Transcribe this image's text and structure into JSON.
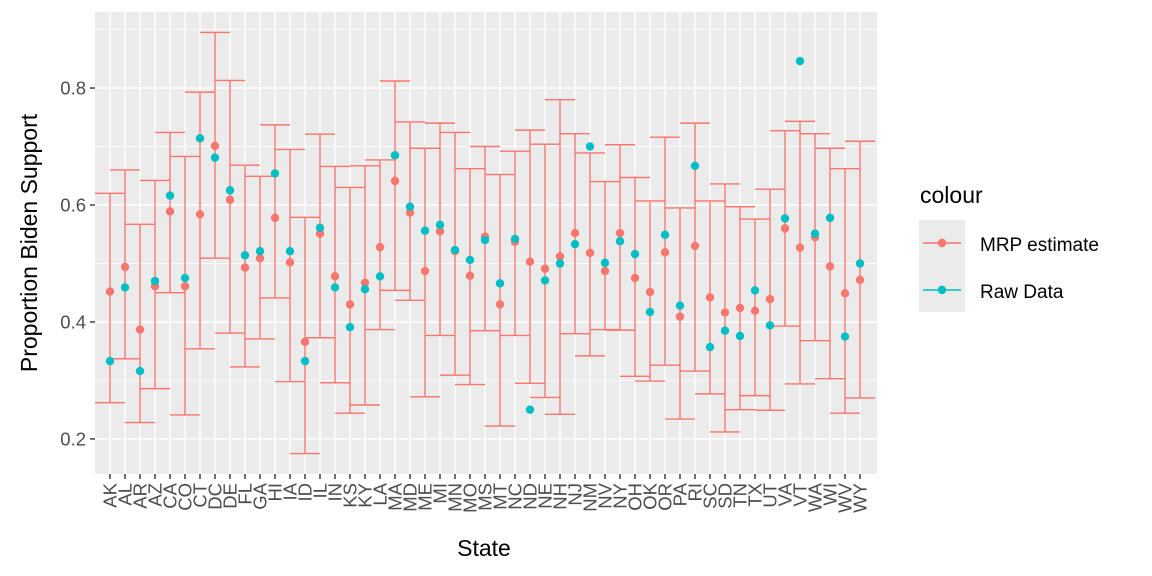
{
  "chart_data": {
    "type": "scatter",
    "xlabel": "State",
    "ylabel": "Proportion Biden Support",
    "ylim": [
      0.14,
      0.93
    ],
    "y_ticks": [
      0.2,
      0.4,
      0.6,
      0.8
    ],
    "y_tick_labels": [
      "0.2",
      "0.4",
      "0.6",
      "0.8"
    ],
    "grid": true,
    "legend_position": "right",
    "legend_title": "colour",
    "categories": [
      "AK",
      "AL",
      "AR",
      "AZ",
      "CA",
      "CO",
      "CT",
      "DC",
      "DE",
      "FL",
      "GA",
      "HI",
      "IA",
      "ID",
      "IL",
      "IN",
      "KS",
      "KY",
      "LA",
      "MA",
      "MD",
      "ME",
      "MI",
      "MN",
      "MO",
      "MS",
      "MT",
      "NC",
      "ND",
      "NE",
      "NH",
      "NJ",
      "NM",
      "NV",
      "NY",
      "OH",
      "OK",
      "OR",
      "PA",
      "RI",
      "SC",
      "SD",
      "TN",
      "TX",
      "UT",
      "VA",
      "VT",
      "WA",
      "WI",
      "WV",
      "WY"
    ],
    "series": [
      {
        "name": "MRP estimate",
        "color": "#F8766D",
        "values": [
          0.452,
          0.494,
          0.387,
          0.461,
          0.589,
          0.461,
          0.584,
          0.701,
          0.609,
          0.493,
          0.509,
          0.578,
          0.502,
          0.366,
          0.551,
          0.478,
          0.43,
          0.467,
          0.528,
          0.641,
          0.587,
          0.487,
          0.555,
          0.521,
          0.479,
          0.546,
          0.43,
          0.537,
          0.503,
          0.491,
          0.512,
          0.552,
          0.518,
          0.487,
          0.552,
          0.475,
          0.451,
          0.519,
          0.409,
          0.53,
          0.442,
          0.416,
          0.424,
          0.419,
          0.439,
          0.56,
          0.527,
          0.545,
          0.495,
          0.449,
          0.472
        ],
        "lower": [
          0.262,
          0.337,
          0.228,
          0.286,
          0.45,
          0.241,
          0.354,
          0.509,
          0.381,
          0.323,
          0.371,
          0.441,
          0.298,
          0.175,
          0.373,
          0.296,
          0.244,
          0.258,
          0.387,
          0.454,
          0.437,
          0.272,
          0.377,
          0.309,
          0.293,
          0.385,
          0.222,
          0.377,
          0.295,
          0.271,
          0.242,
          0.38,
          0.342,
          0.387,
          0.386,
          0.307,
          0.299,
          0.326,
          0.234,
          0.316,
          0.277,
          0.212,
          0.25,
          0.274,
          0.249,
          0.393,
          0.294,
          0.368,
          0.303,
          0.244,
          0.27
        ],
        "upper": [
          0.62,
          0.66,
          0.567,
          0.642,
          0.724,
          0.683,
          0.793,
          0.895,
          0.813,
          0.668,
          0.649,
          0.737,
          0.695,
          0.579,
          0.721,
          0.666,
          0.63,
          0.667,
          0.677,
          0.812,
          0.742,
          0.697,
          0.74,
          0.724,
          0.662,
          0.7,
          0.652,
          0.692,
          0.728,
          0.704,
          0.78,
          0.722,
          0.689,
          0.64,
          0.703,
          0.647,
          0.607,
          0.716,
          0.595,
          0.74,
          0.607,
          0.636,
          0.597,
          0.576,
          0.627,
          0.727,
          0.743,
          0.722,
          0.697,
          0.662,
          0.709
        ]
      },
      {
        "name": "Raw Data",
        "color": "#00BFC4",
        "values": [
          0.333,
          0.459,
          0.316,
          0.47,
          0.616,
          0.475,
          0.714,
          0.681,
          0.625,
          0.514,
          0.521,
          0.654,
          0.521,
          0.333,
          0.561,
          0.459,
          0.391,
          0.456,
          0.478,
          0.685,
          0.597,
          0.556,
          0.566,
          0.523,
          0.506,
          0.54,
          0.466,
          0.542,
          0.25,
          0.471,
          0.5,
          0.533,
          0.7,
          0.501,
          0.538,
          0.516,
          0.417,
          0.549,
          0.428,
          0.667,
          0.357,
          0.385,
          0.376,
          0.454,
          0.394,
          0.577,
          0.846,
          0.551,
          0.578,
          0.375,
          0.5
        ]
      }
    ]
  }
}
